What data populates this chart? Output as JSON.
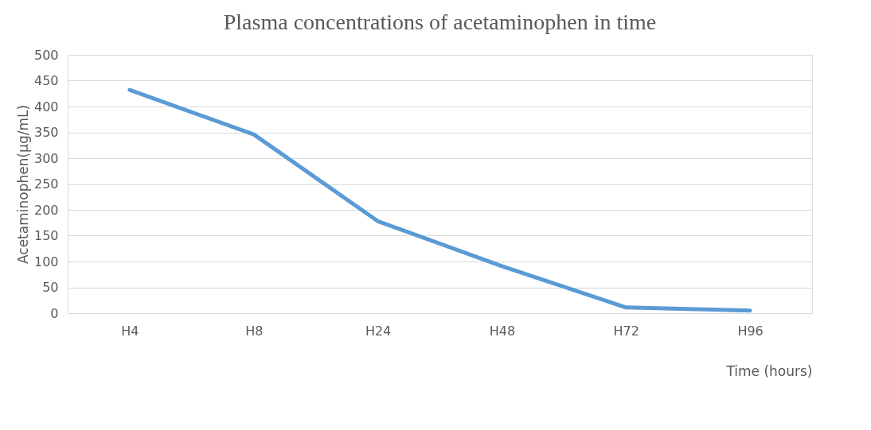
{
  "chart_data": {
    "type": "line",
    "title": "Plasma concentrations of acetaminophen in time",
    "xlabel": "Time (hours)",
    "ylabel": "Acetaminophen(µg/mL)",
    "categories": [
      "H4",
      "H8",
      "H24",
      "H48",
      "H72",
      "H96"
    ],
    "series": [
      {
        "color": "#5b9bd5",
        "values": [
          432,
          346,
          178,
          91,
          11,
          5
        ]
      }
    ],
    "ylim": [
      0,
      500
    ],
    "yticks": [
      0,
      50,
      100,
      150,
      200,
      250,
      300,
      350,
      400,
      450,
      500
    ],
    "grid": "y",
    "legend": false,
    "marker": "none",
    "line_style": "solid"
  }
}
